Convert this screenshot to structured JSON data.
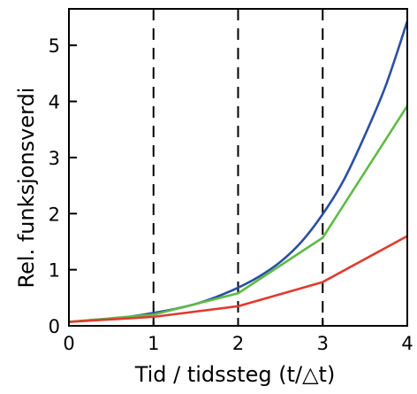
{
  "chart_data": {
    "type": "line",
    "title": "",
    "xlabel": "Tid / tidssteg  (t/△t)",
    "ylabel": "Rel. funksjonsverdi",
    "xlim": [
      0,
      4
    ],
    "ylim": [
      0,
      5.65
    ],
    "xticks": [
      0,
      1,
      2,
      3,
      4
    ],
    "xtick_labels": [
      "0",
      "1",
      "2",
      "3",
      "4"
    ],
    "yticks": [
      0,
      1,
      2,
      3,
      4,
      5
    ],
    "ytick_labels": [
      "0",
      "1",
      "2",
      "3",
      "4",
      "5"
    ],
    "grid": false,
    "vertical_dashed_lines_at": [
      1,
      2,
      3,
      4
    ],
    "series": [
      {
        "color": "#2b4fa3",
        "smooth": true,
        "x": [
          0,
          0.25,
          0.5,
          0.75,
          1,
          1.25,
          1.5,
          1.75,
          2,
          2.25,
          2.5,
          2.75,
          3,
          3.25,
          3.5,
          3.75,
          4
        ],
        "y": [
          0.07,
          0.1,
          0.13,
          0.17,
          0.23,
          0.3,
          0.39,
          0.52,
          0.68,
          0.88,
          1.14,
          1.5,
          1.99,
          2.6,
          3.4,
          4.3,
          5.43
        ]
      },
      {
        "color": "#5dbb46",
        "smooth": false,
        "x": [
          0,
          1,
          2,
          3,
          4
        ],
        "y": [
          0.07,
          0.2,
          0.58,
          1.57,
          3.92
        ]
      },
      {
        "color": "#e03a2f",
        "smooth": false,
        "x": [
          0,
          1,
          2,
          3,
          4
        ],
        "y": [
          0.07,
          0.16,
          0.35,
          0.78,
          1.6
        ]
      }
    ]
  }
}
